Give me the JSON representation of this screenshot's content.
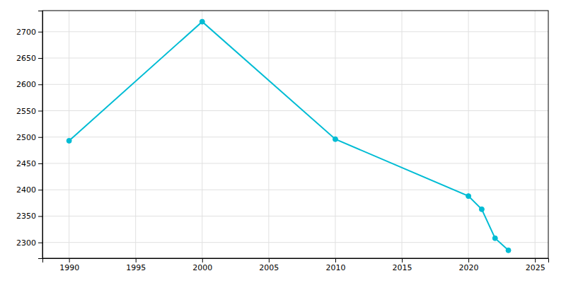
{
  "chart_data": {
    "type": "line",
    "x": [
      1990,
      2000,
      2010,
      2020,
      2021,
      2022,
      2023
    ],
    "values": [
      2493,
      2719,
      2496,
      2388,
      2363,
      2308,
      2285
    ],
    "color": "#00BCD4",
    "marker": "circle",
    "xlim": [
      1988,
      2026
    ],
    "ylim": [
      2270,
      2740
    ],
    "xticks": [
      1990,
      1995,
      2000,
      2005,
      2010,
      2015,
      2020,
      2025
    ],
    "yticks": [
      2300,
      2350,
      2400,
      2450,
      2500,
      2550,
      2600,
      2650,
      2700
    ],
    "grid": true
  }
}
